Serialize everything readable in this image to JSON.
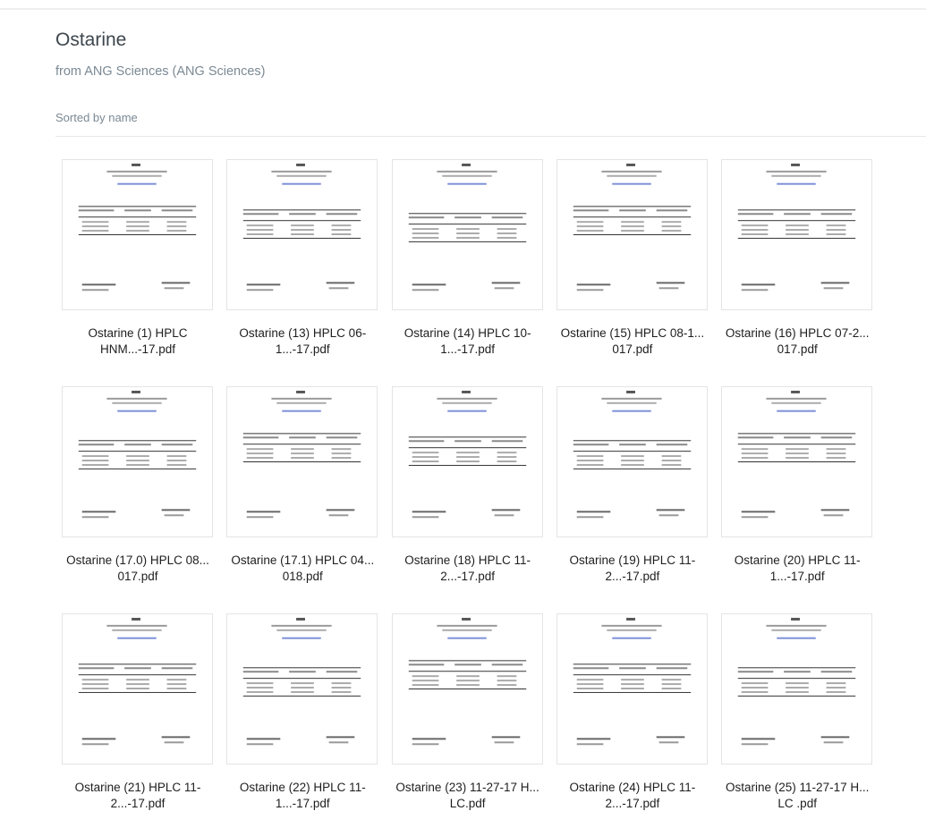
{
  "folder": {
    "title": "Ostarine",
    "subtitle": "from ANG Sciences (ANG Sciences)",
    "sort_label": "Sorted by name"
  },
  "files": [
    {
      "line1": "Ostarine (1) HPLC",
      "line2": "HNM...-17.pdf",
      "icon": "pdf-thumbnail"
    },
    {
      "line1": "Ostarine (13) HPLC 06-",
      "line2": "1...-17.pdf",
      "icon": "pdf-thumbnail"
    },
    {
      "line1": "Ostarine (14) HPLC 10-",
      "line2": "1...-17.pdf",
      "icon": "pdf-thumbnail"
    },
    {
      "line1": "Ostarine (15) HPLC 08-1...",
      "line2": "017.pdf",
      "icon": "pdf-thumbnail"
    },
    {
      "line1": "Ostarine (16) HPLC 07-2...",
      "line2": "017.pdf",
      "icon": "pdf-thumbnail"
    },
    {
      "line1": "Ostarine (17.0) HPLC 08...",
      "line2": "017.pdf",
      "icon": "pdf-thumbnail"
    },
    {
      "line1": "Ostarine (17.1) HPLC 04...",
      "line2": "018.pdf",
      "icon": "pdf-thumbnail"
    },
    {
      "line1": "Ostarine (18) HPLC 11-",
      "line2": "2...-17.pdf",
      "icon": "pdf-thumbnail"
    },
    {
      "line1": "Ostarine (19) HPLC 11-",
      "line2": "2...-17.pdf",
      "icon": "pdf-thumbnail"
    },
    {
      "line1": "Ostarine (20) HPLC 11-",
      "line2": "1...-17.pdf",
      "icon": "pdf-thumbnail"
    },
    {
      "line1": "Ostarine (21) HPLC 11-",
      "line2": "2...-17.pdf",
      "icon": "pdf-thumbnail"
    },
    {
      "line1": "Ostarine (22) HPLC 11-",
      "line2": "1...-17.pdf",
      "icon": "pdf-thumbnail"
    },
    {
      "line1": "Ostarine (23) 11-27-17 H...",
      "line2": "LC.pdf",
      "icon": "pdf-thumbnail"
    },
    {
      "line1": "Ostarine (24) HPLC 11-",
      "line2": "2...-17.pdf",
      "icon": "pdf-thumbnail"
    },
    {
      "line1": "Ostarine (25) 11-27-17 H...",
      "line2": "LC .pdf",
      "icon": "pdf-thumbnail"
    }
  ]
}
